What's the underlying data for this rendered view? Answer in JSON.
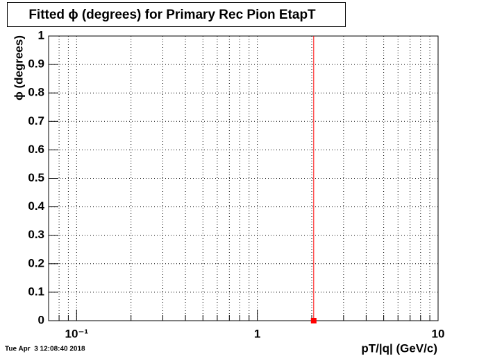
{
  "chart_data": {
    "type": "scatter",
    "title": "Fitted ϕ (degrees) for Primary Rec Pion EtapT",
    "x_label": "pT/|q| (GeV/c)",
    "y_label": "ϕ (degrees)",
    "timestamp": "Tue Apr  3 12:08:40 2018",
    "xscale": "log",
    "xlim": [
      0.07,
      10
    ],
    "ylim": [
      0,
      1
    ],
    "xticks": [
      {
        "value": 0.1,
        "label": "10⁻¹"
      },
      1,
      10
    ],
    "xminor": [
      0.08,
      0.09,
      0.2,
      0.3,
      0.4,
      0.5,
      0.6,
      0.7,
      0.8,
      0.9,
      2,
      3,
      4,
      5,
      6,
      7,
      8,
      9
    ],
    "yticks": [
      0,
      0.1,
      0.2,
      0.3,
      0.4,
      0.5,
      0.6,
      0.7,
      0.8,
      0.9,
      1
    ],
    "grid": true,
    "series": [
      {
        "color": "#ff0000",
        "x": [
          2.05
        ],
        "values": [
          0
        ],
        "errors": [
          1
        ]
      }
    ]
  }
}
